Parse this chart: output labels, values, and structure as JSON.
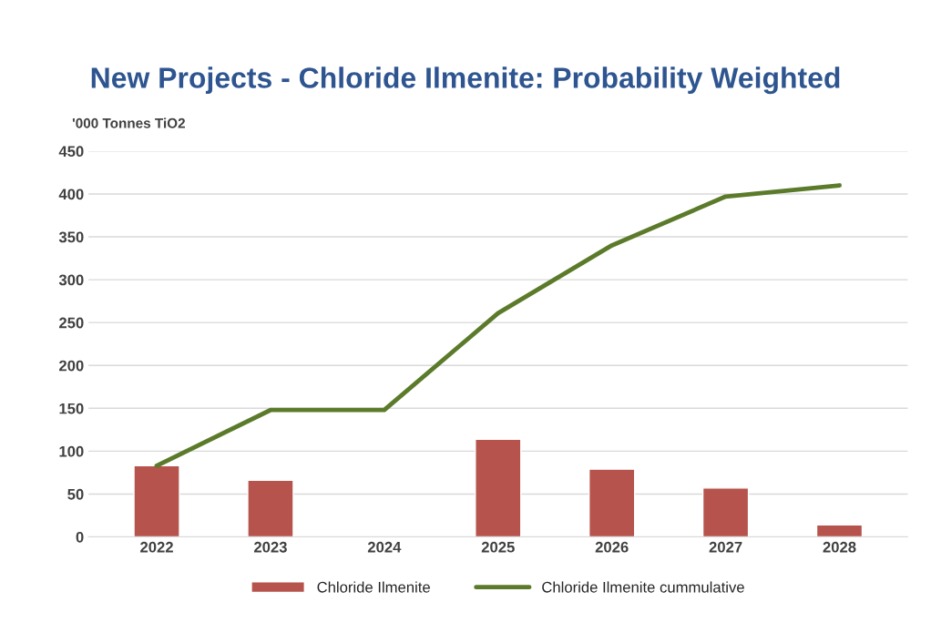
{
  "chart_data": {
    "type": "bar",
    "title": "New Projects - Chloride Ilmenite: Probability Weighted",
    "ylabel": "'000 Tonnes TiO2",
    "categories": [
      "2022",
      "2023",
      "2024",
      "2025",
      "2026",
      "2027",
      "2028"
    ],
    "series": [
      {
        "name": "Chloride Ilmenite",
        "color": "#b5534c",
        "values": [
          83,
          66,
          null,
          114,
          79,
          57,
          14
        ]
      },
      {
        "name": "Chloride Ilmenite cummulative",
        "type": "line",
        "color": "#5b7b2b",
        "values": [
          83,
          148,
          148,
          261,
          340,
          397,
          410
        ]
      }
    ],
    "ylim": [
      0,
      450
    ],
    "yticks": [
      0,
      50,
      100,
      150,
      200,
      250,
      300,
      350,
      400,
      450
    ],
    "grid": "y",
    "legend": "bottom"
  }
}
